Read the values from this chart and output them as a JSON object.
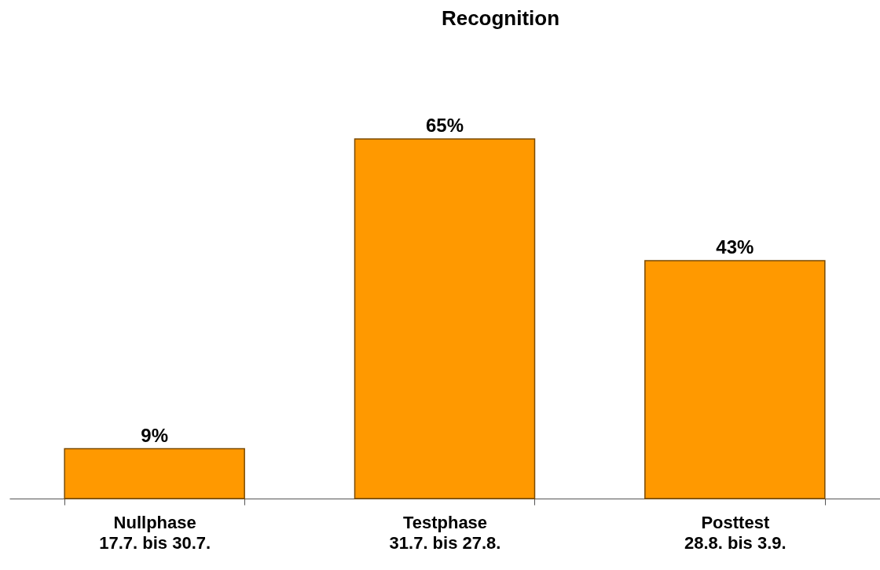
{
  "chart_data": {
    "type": "bar",
    "title": "Recognition",
    "categories": [
      "Nullphase\n17.7. bis 30.7.",
      "Testphase\n31.7. bis 27.8.",
      "Posttest\n28.8. bis 3.9."
    ],
    "values": [
      9,
      65,
      43
    ],
    "value_labels": [
      "9%",
      "65%",
      "43%"
    ],
    "color": "#ff9900"
  }
}
